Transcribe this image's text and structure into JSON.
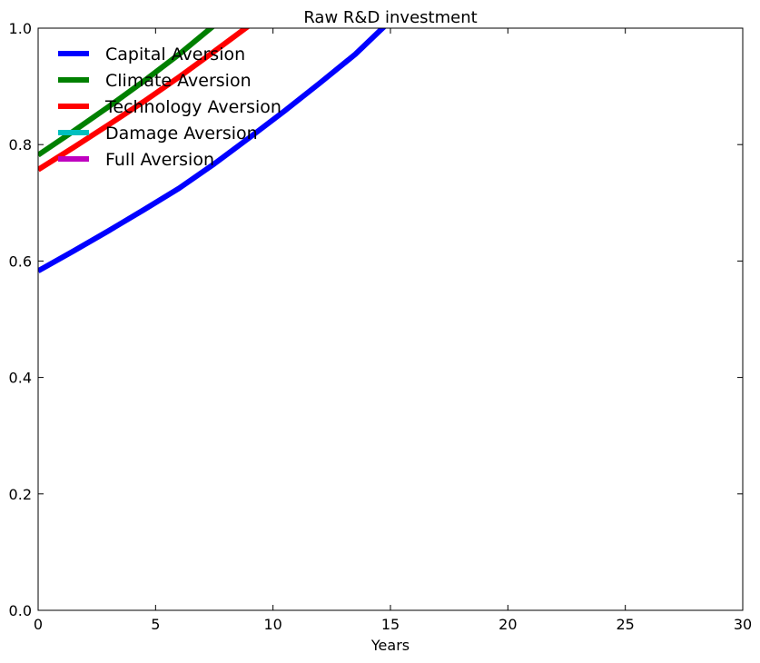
{
  "chart_data": {
    "type": "line",
    "title": "Raw R&D investment",
    "xlabel": "Years",
    "ylabel": "",
    "xlim": [
      0,
      30
    ],
    "ylim": [
      0.0,
      1.0
    ],
    "xticks": [
      "0",
      "5",
      "10",
      "15",
      "20",
      "25",
      "30"
    ],
    "yticks": [
      "0.0",
      "0.2",
      "0.4",
      "0.6",
      "0.8",
      "1.0"
    ],
    "grid": false,
    "legend_position": "top-left",
    "series": [
      {
        "name": "Capital Aversion",
        "color": "#0000ff",
        "x": [
          0,
          1.5,
          3,
          4.5,
          6,
          7.5,
          9,
          10.5,
          12,
          13.5,
          15
        ],
        "y": [
          0.583,
          0.617,
          0.652,
          0.688,
          0.725,
          0.767,
          0.812,
          0.858,
          0.906,
          0.955,
          1.013
        ]
      },
      {
        "name": "Climate Aversion",
        "color": "#008000",
        "x": [
          0,
          1.5,
          3,
          4.5,
          6,
          7.5
        ],
        "y": [
          0.782,
          0.823,
          0.865,
          0.909,
          0.955,
          1.005
        ]
      },
      {
        "name": "Technology Aversion",
        "color": "#ff0000",
        "x": [
          0,
          1.5,
          3,
          4.5,
          6,
          7.5,
          9
        ],
        "y": [
          0.757,
          0.795,
          0.834,
          0.874,
          0.916,
          0.96,
          1.005
        ]
      },
      {
        "name": "Damage Aversion",
        "color": "#00bfbf",
        "x": [],
        "y": []
      },
      {
        "name": "Full Aversion",
        "color": "#bf00bf",
        "x": [],
        "y": []
      }
    ]
  }
}
